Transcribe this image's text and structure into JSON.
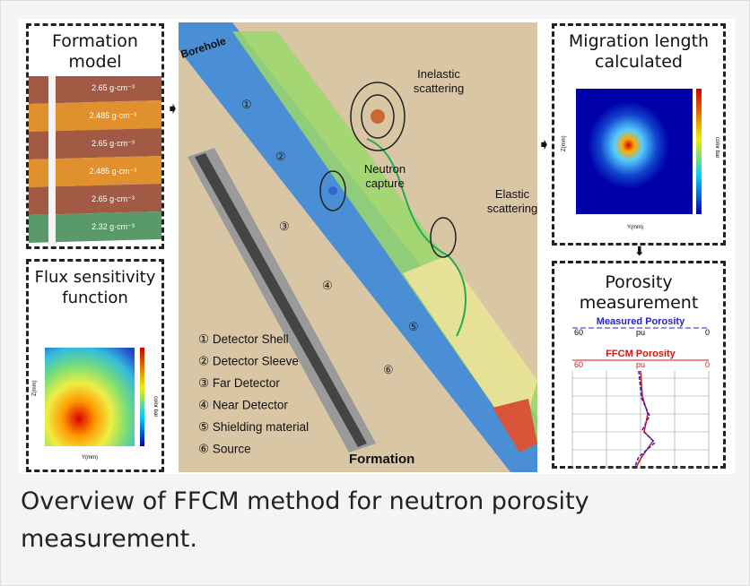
{
  "figure": {
    "formation_model": {
      "title": "Formation model",
      "layers": [
        "2.65 g·cm⁻³",
        "2.485 g·cm⁻³",
        "2.65 g·cm⁻³",
        "2.485 g·cm⁻³",
        "2.65 g·cm⁻³",
        "2.32 g·cm⁻³"
      ]
    },
    "flux": {
      "title": "Flux sensitivity function",
      "colorbar_label": "color bar",
      "x_label": "Y(mm)",
      "y_label": "Z(mm)"
    },
    "center": {
      "borehole": "Borehole",
      "formation": "Formation",
      "inelastic": "Inelastic scattering",
      "capture": "Neutron capture",
      "elastic": "Elastic scattering",
      "markers": [
        "①",
        "②",
        "③",
        "④",
        "⑤",
        "⑥"
      ],
      "legend": [
        "① Detector Shell",
        "② Detector Sleeve",
        "③ Far Detector",
        "④ Near Detector",
        "⑤ Shielding material",
        "⑥ Source"
      ]
    },
    "migration": {
      "title": "Migration length calculated",
      "colorbar_label": "color bar",
      "x_label": "Y(mm)",
      "y_label": "Z(mm)"
    },
    "porosity": {
      "title": "Porosity measurement",
      "measured": "Measured Porosity",
      "measured_left": "60",
      "measured_unit": "pu",
      "measured_right": "0",
      "ffcm": "FFCM Porosity",
      "ffcm_left": "60",
      "ffcm_unit": "pu",
      "ffcm_right": "0"
    }
  },
  "caption": "Overview of FFCM method for neutron porosity measurement."
}
